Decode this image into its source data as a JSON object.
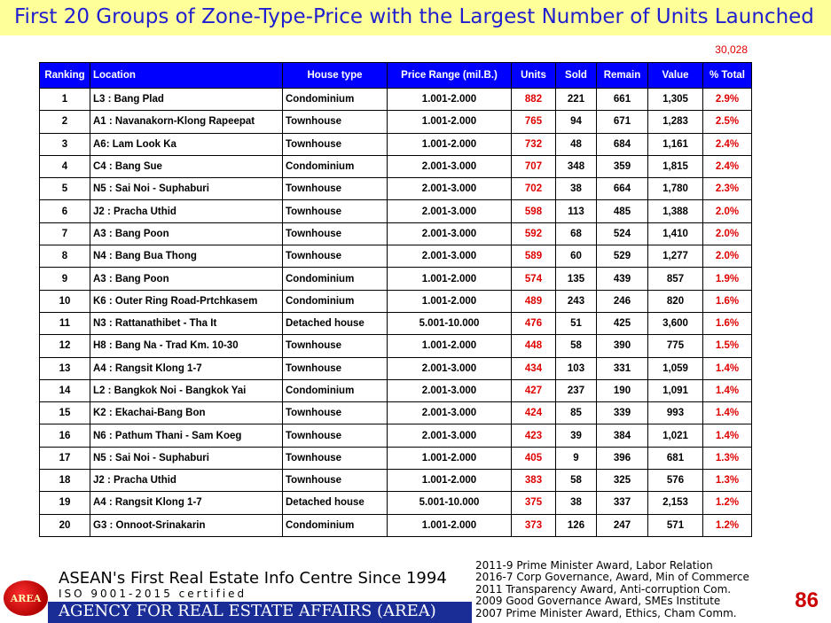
{
  "title": "First 20 Groups of Zone-Type-Price with the Largest Number of Units Launched",
  "grand_total": "30,028",
  "table": {
    "headers": [
      "Ranking",
      "Location",
      "House type",
      "Price Range (mil.B.)",
      "Units",
      "Sold",
      "Remain",
      "Value",
      "% Total"
    ],
    "rows": [
      [
        "1",
        "L3 : Bang Plad",
        "Condominium",
        "1.001-2.000",
        "882",
        "221",
        "661",
        "1,305",
        "2.9%"
      ],
      [
        "2",
        "A1 : Navanakorn-Klong Rapeepat",
        "Townhouse",
        "1.001-2.000",
        "765",
        "94",
        "671",
        "1,283",
        "2.5%"
      ],
      [
        "3",
        "A6: Lam Look Ka",
        "Townhouse",
        "1.001-2.000",
        "732",
        "48",
        "684",
        "1,161",
        "2.4%"
      ],
      [
        "4",
        "C4 : Bang Sue",
        "Condominium",
        "2.001-3.000",
        "707",
        "348",
        "359",
        "1,815",
        "2.4%"
      ],
      [
        "5",
        "N5 : Sai Noi - Suphaburi",
        "Townhouse",
        "2.001-3.000",
        "702",
        "38",
        "664",
        "1,780",
        "2.3%"
      ],
      [
        "6",
        "J2 : Pracha Uthid",
        "Townhouse",
        "2.001-3.000",
        "598",
        "113",
        "485",
        "1,388",
        "2.0%"
      ],
      [
        "7",
        "A3 : Bang Poon",
        "Townhouse",
        "2.001-3.000",
        "592",
        "68",
        "524",
        "1,410",
        "2.0%"
      ],
      [
        "8",
        "N4 : Bang Bua Thong",
        "Townhouse",
        "2.001-3.000",
        "589",
        "60",
        "529",
        "1,277",
        "2.0%"
      ],
      [
        "9",
        "A3 : Bang Poon",
        "Condominium",
        "1.001-2.000",
        "574",
        "135",
        "439",
        "857",
        "1.9%"
      ],
      [
        "10",
        "K6 : Outer Ring Road-Prtchkasem",
        "Condominium",
        "1.001-2.000",
        "489",
        "243",
        "246",
        "820",
        "1.6%"
      ],
      [
        "11",
        "N3 : Rattanathibet - Tha It",
        "Detached house",
        "5.001-10.000",
        "476",
        "51",
        "425",
        "3,600",
        "1.6%"
      ],
      [
        "12",
        "H8 : Bang Na - Trad Km. 10-30",
        "Townhouse",
        "1.001-2.000",
        "448",
        "58",
        "390",
        "775",
        "1.5%"
      ],
      [
        "13",
        "A4 : Rangsit Klong 1-7",
        "Townhouse",
        "2.001-3.000",
        "434",
        "103",
        "331",
        "1,059",
        "1.4%"
      ],
      [
        "14",
        "L2 : Bangkok Noi - Bangkok Yai",
        "Condominium",
        "2.001-3.000",
        "427",
        "237",
        "190",
        "1,091",
        "1.4%"
      ],
      [
        "15",
        "K2 : Ekachai-Bang Bon",
        "Townhouse",
        "2.001-3.000",
        "424",
        "85",
        "339",
        "993",
        "1.4%"
      ],
      [
        "16",
        "N6 : Pathum Thani - Sam Koeg",
        "Townhouse",
        "2.001-3.000",
        "423",
        "39",
        "384",
        "1,021",
        "1.4%"
      ],
      [
        "17",
        "N5 : Sai Noi - Suphaburi",
        "Townhouse",
        "1.001-2.000",
        "405",
        "9",
        "396",
        "681",
        "1.3%"
      ],
      [
        "18",
        "J2 : Pracha Uthid",
        "Townhouse",
        "1.001-2.000",
        "383",
        "58",
        "325",
        "576",
        "1.3%"
      ],
      [
        "19",
        "A4 : Rangsit Klong 1-7",
        "Detached house",
        "5.001-10.000",
        "375",
        "38",
        "337",
        "2,153",
        "1.2%"
      ],
      [
        "20",
        "G3 : Onnoot-Srinakarin",
        "Condominium",
        "1.001-2.000",
        "373",
        "126",
        "247",
        "571",
        "1.2%"
      ]
    ]
  },
  "footer": {
    "logo_text": "AREA",
    "line1": "ASEAN's First Real Estate Info Centre Since 1994",
    "line2": "ISO 9001-2015 certified",
    "line3": "AGENCY FOR REAL ESTATE AFFAIRS (AREA)",
    "awards": [
      "2011-9 Prime Minister Award, Labor Relation",
      "2016-7 Corp Governance, Award, Min of Commerce",
      "2011 Transparency Award, Anti-corruption Com.",
      "2009 Good Governance Award, SMEs Institute",
      "2007 Prime Minister Award, Ethics, Cham Comm."
    ],
    "page_number": "86"
  },
  "colors": {
    "title_text": "#1f1fd0",
    "title_background": "#ffff99",
    "header_background": "#0000ff",
    "highlight_red": "#e00000",
    "footer_band": "#1a2d96"
  }
}
